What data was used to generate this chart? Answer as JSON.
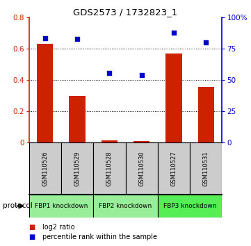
{
  "title": "GDS2573 / 1732823_1",
  "categories": [
    "GSM110526",
    "GSM110529",
    "GSM110528",
    "GSM110530",
    "GSM110527",
    "GSM110531"
  ],
  "bar_values": [
    0.63,
    0.3,
    0.013,
    0.01,
    0.57,
    0.355
  ],
  "scatter_values": [
    83.5,
    82.5,
    55.5,
    54.0,
    87.5,
    80.0
  ],
  "bar_color": "#cc2200",
  "scatter_color": "#0000cc",
  "ylim_left": [
    0,
    0.8
  ],
  "ylim_right": [
    0,
    100
  ],
  "yticks_left": [
    0,
    0.2,
    0.4,
    0.6,
    0.8
  ],
  "yticks_right": [
    0,
    25,
    50,
    75,
    100
  ],
  "ytick_labels_left": [
    "0",
    "0.2",
    "0.4",
    "0.6",
    "0.8"
  ],
  "ytick_labels_right": [
    "0",
    "25",
    "50",
    "75",
    "100%"
  ],
  "groups": [
    {
      "label": "FBP1 knockdown",
      "indices": [
        0,
        1
      ],
      "color": "#99ee99"
    },
    {
      "label": "FBP2 knockdown",
      "indices": [
        2,
        3
      ],
      "color": "#99ee99"
    },
    {
      "label": "FBP3 knockdown",
      "indices": [
        4,
        5
      ],
      "color": "#55ee55"
    }
  ],
  "protocol_label": "protocol",
  "legend_items": [
    {
      "label": "log2 ratio",
      "color": "#cc2200"
    },
    {
      "label": "percentile rank within the sample",
      "color": "#0000cc"
    }
  ],
  "gray_bg": "#cccccc",
  "bar_width": 0.5
}
